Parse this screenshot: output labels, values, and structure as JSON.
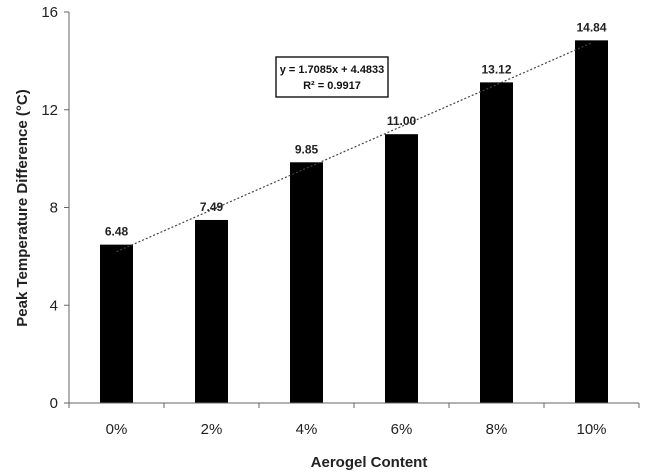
{
  "chart_data": {
    "type": "bar",
    "categories": [
      "0%",
      "2%",
      "4%",
      "6%",
      "8%",
      "10%"
    ],
    "values": [
      6.48,
      7.49,
      9.85,
      11.0,
      13.12,
      14.84
    ],
    "value_labels": [
      "6.48",
      "7.49",
      "9.85",
      "11.00",
      "13.12",
      "14.84"
    ],
    "xlabel": "Aerogel Content",
    "ylabel": "Peak Temperature Difference (°C)",
    "ylim": [
      0,
      16
    ],
    "yticks": [
      0,
      4,
      8,
      12,
      16
    ],
    "ytick_labels": [
      "0",
      "4",
      "8",
      "12",
      "16"
    ],
    "grid": false,
    "bar_color": "#000000",
    "trendline": {
      "type": "linear",
      "slope": 1.7085,
      "intercept": 4.4833,
      "equation": "y = 1.7085x + 4.4833",
      "r_squared": "R² = 0.9917"
    }
  }
}
